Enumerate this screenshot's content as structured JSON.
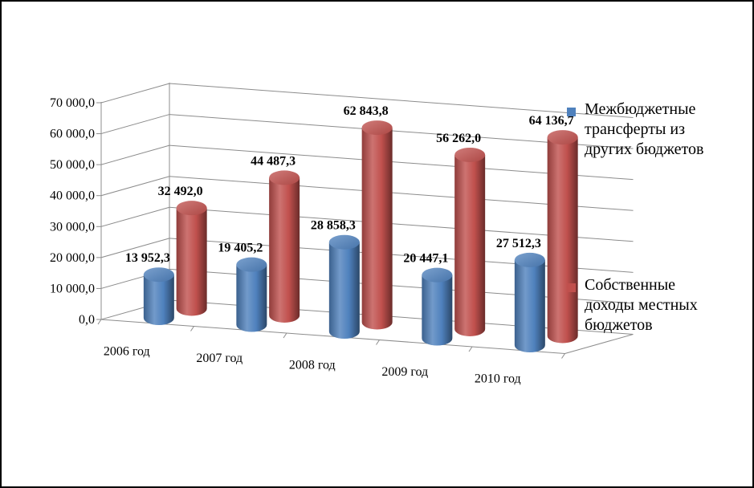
{
  "chart_data": {
    "type": "bar",
    "style": "3d-cylinder",
    "categories": [
      "2006 год",
      "2007 год",
      "2008 год",
      "2009 год",
      "2010 год"
    ],
    "series": [
      {
        "name": "Межбюджетные трансферты из других бюджетов",
        "color": "#4F81BD",
        "values": [
          13952.3,
          19405.2,
          28858.3,
          20447.1,
          27512.3
        ],
        "labels": [
          "13 952,3",
          "19 405,2",
          "28 858,3",
          "20 447,1",
          "27 512,3"
        ]
      },
      {
        "name": "Собственные доходы местных бюджетов",
        "color": "#C0504D",
        "values": [
          32492.0,
          44487.3,
          62843.8,
          56262.0,
          64136.7
        ],
        "labels": [
          "32 492,0",
          "44 487,3",
          "62 843,8",
          "56 262,0",
          "64 136,7"
        ]
      }
    ],
    "ylim": [
      0,
      70000
    ],
    "y_ticks": [
      "0,0",
      "10 000,0",
      "20 000,0",
      "30 000,0",
      "40 000,0",
      "50 000,0",
      "60 000,0",
      "70 000,0"
    ],
    "grid": true,
    "legend_position": "right"
  },
  "legend": {
    "items": [
      {
        "lines": [
          "Межбюджетные",
          "трансферты из",
          "других бюджетов"
        ],
        "color": "#4F81BD"
      },
      {
        "lines": [
          "Собственные",
          "доходы местных",
          "бюджетов"
        ],
        "color": "#C0504D"
      }
    ]
  }
}
